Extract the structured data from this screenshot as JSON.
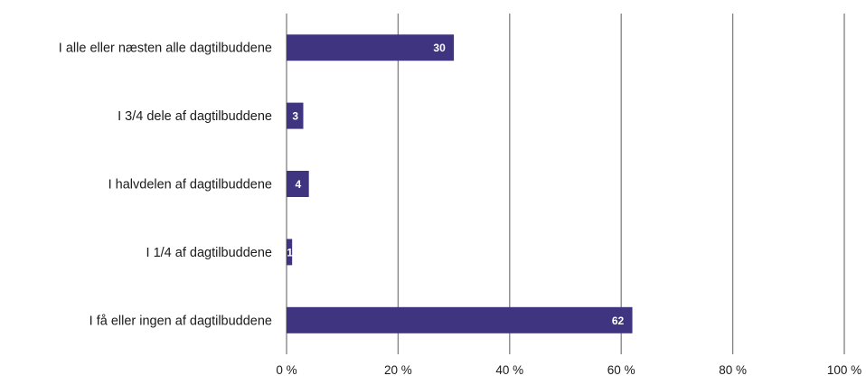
{
  "chart_data": {
    "type": "bar",
    "orientation": "horizontal",
    "title": "",
    "xlabel": "",
    "ylabel": "",
    "categories": [
      "I alle eller næsten alle dagtilbuddene",
      "I 3/4 dele af dagtilbuddene",
      "I halvdelen af dagtilbuddene",
      "I 1/4 af dagtilbuddene",
      "I få eller ingen af dagtilbuddene"
    ],
    "series": [
      {
        "values": [
          30,
          3,
          4,
          1,
          62
        ],
        "data_labels": [
          "30",
          "3",
          "4",
          "1",
          "62"
        ]
      }
    ],
    "xlim": [
      0,
      100
    ],
    "xticks": [
      0,
      20,
      40,
      60,
      80,
      100
    ],
    "xtick_labels": [
      "0 %",
      "20 %",
      "40 %",
      "60 %",
      "80 %",
      "100 %"
    ],
    "grid": "vertical",
    "legend": "none",
    "colors": {
      "bar": "#3f3480",
      "grid": "#808080",
      "text": "#1a1a1a",
      "data_label": "#ffffff"
    }
  }
}
